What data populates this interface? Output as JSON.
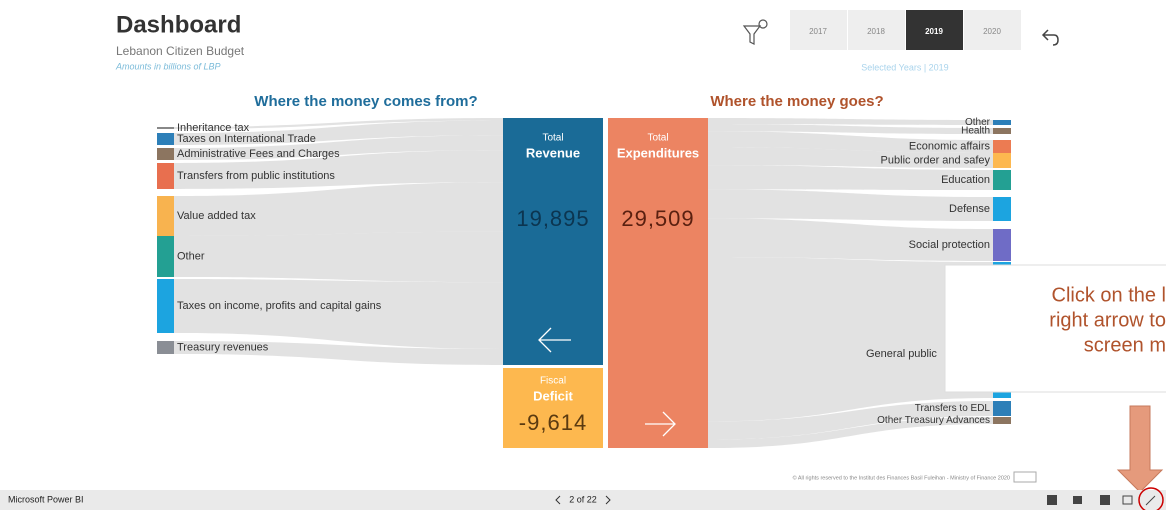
{
  "header": {
    "title": "Dashboard",
    "subtitle": "Lebanon Citizen Budget",
    "note": "Amounts in billions of LBP"
  },
  "filters": {
    "years": [
      "2017",
      "2018",
      "2019",
      "2020"
    ],
    "selected_label": "Selected Years | 2019"
  },
  "sankey": {
    "left_title": "Where the money comes from?",
    "right_title": "Where the money goes?",
    "sources": [
      "Inheritance tax",
      "Taxes on International Trade",
      "Administrative Fees and Charges",
      "Transfers from public institutions",
      "Value added tax",
      "Other",
      "Taxes on income, profits and capital gains",
      "Treasury revenues"
    ],
    "revenue": {
      "small": "Total",
      "big": "Revenue",
      "value": "19,895"
    },
    "expenditure": {
      "small": "Total",
      "big": "Expenditures",
      "value": "29,509"
    },
    "deficit": {
      "small": "Fiscal",
      "big": "Deficit",
      "value": "-9,614"
    },
    "uses": [
      "Other",
      "Health",
      "Economic affairs",
      "Public order and safey",
      "Education",
      "Defense",
      "Social protection",
      "General public",
      "Transfers to EDL",
      "Other Treasury Advances"
    ]
  },
  "callout": {
    "lines": [
      "Click on the l",
      "right arrow to",
      "screen m"
    ]
  },
  "footer": {
    "copyright": "© All rights reserved to the Institut des Finances Basil Fuleihan - Ministry of Finance 2020",
    "app": "Microsoft Power BI",
    "pager": "2 of 22"
  }
}
